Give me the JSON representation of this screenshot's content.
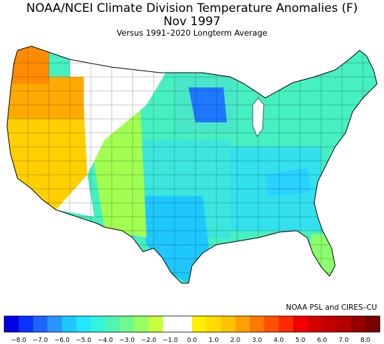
{
  "header": {
    "title": "NOAA/NCEI Climate Division Temperature Anomalies (F)",
    "period": "Nov 1997",
    "subtitle": "Versus 1991–2020 Longterm Average"
  },
  "map": {
    "region": "Contiguous United States climate divisions",
    "regional_anomalies": [
      {
        "region": "Pacific Northwest coast",
        "anomaly_f": 5.0,
        "color": "#ff8c00"
      },
      {
        "region": "Oregon / Idaho interior",
        "anomaly_f": 4.0,
        "color": "#ffaa00"
      },
      {
        "region": "California / Nevada",
        "anomaly_f": 3.0,
        "color": "#ffd000"
      },
      {
        "region": "Montana / Wyoming / Utah interior",
        "anomaly_f": 0.5,
        "color": "#ffffff"
      },
      {
        "region": "Eastern Rockies / West Texas",
        "anomaly_f": -2.0,
        "color": "#a0ff50"
      },
      {
        "region": "Great Plains",
        "anomaly_f": -3.5,
        "color": "#50f5c8"
      },
      {
        "region": "Upper Midwest (Minnesota)",
        "anomaly_f": -6.0,
        "color": "#1e78ff"
      },
      {
        "region": "Southeast / Tennessee Valley",
        "anomaly_f": -4.5,
        "color": "#28d2ff"
      },
      {
        "region": "Northeast",
        "anomaly_f": -3.0,
        "color": "#3cf0b4"
      },
      {
        "region": "Florida",
        "anomaly_f": -2.0,
        "color": "#8cff6e"
      }
    ]
  },
  "legend": {
    "ticks": [
      "−8.0",
      "−7.0",
      "−6.0",
      "−5.0",
      "−4.0",
      "−3.0",
      "−2.0",
      "−1.0",
      "0.0",
      "1.0",
      "2.0",
      "3.0",
      "4.0",
      "5.0",
      "6.0",
      "7.0",
      "8.0"
    ],
    "colors": [
      "#0000e6",
      "#0a32ff",
      "#1e64ff",
      "#2896ff",
      "#1ec8ff",
      "#23e6ff",
      "#32f5dc",
      "#50f5b4",
      "#6efa8c",
      "#96ff64",
      "#c8ff3c",
      "#ffffff",
      "#ffffff",
      "#fff000",
      "#ffdc00",
      "#ffc300",
      "#ffa000",
      "#ff7800",
      "#ff5000",
      "#ff2800",
      "#f00000",
      "#d70000",
      "#c30000",
      "#b40000",
      "#960000",
      "#780000"
    ]
  },
  "credit": "NOAA PSL and CIRES–CU"
}
